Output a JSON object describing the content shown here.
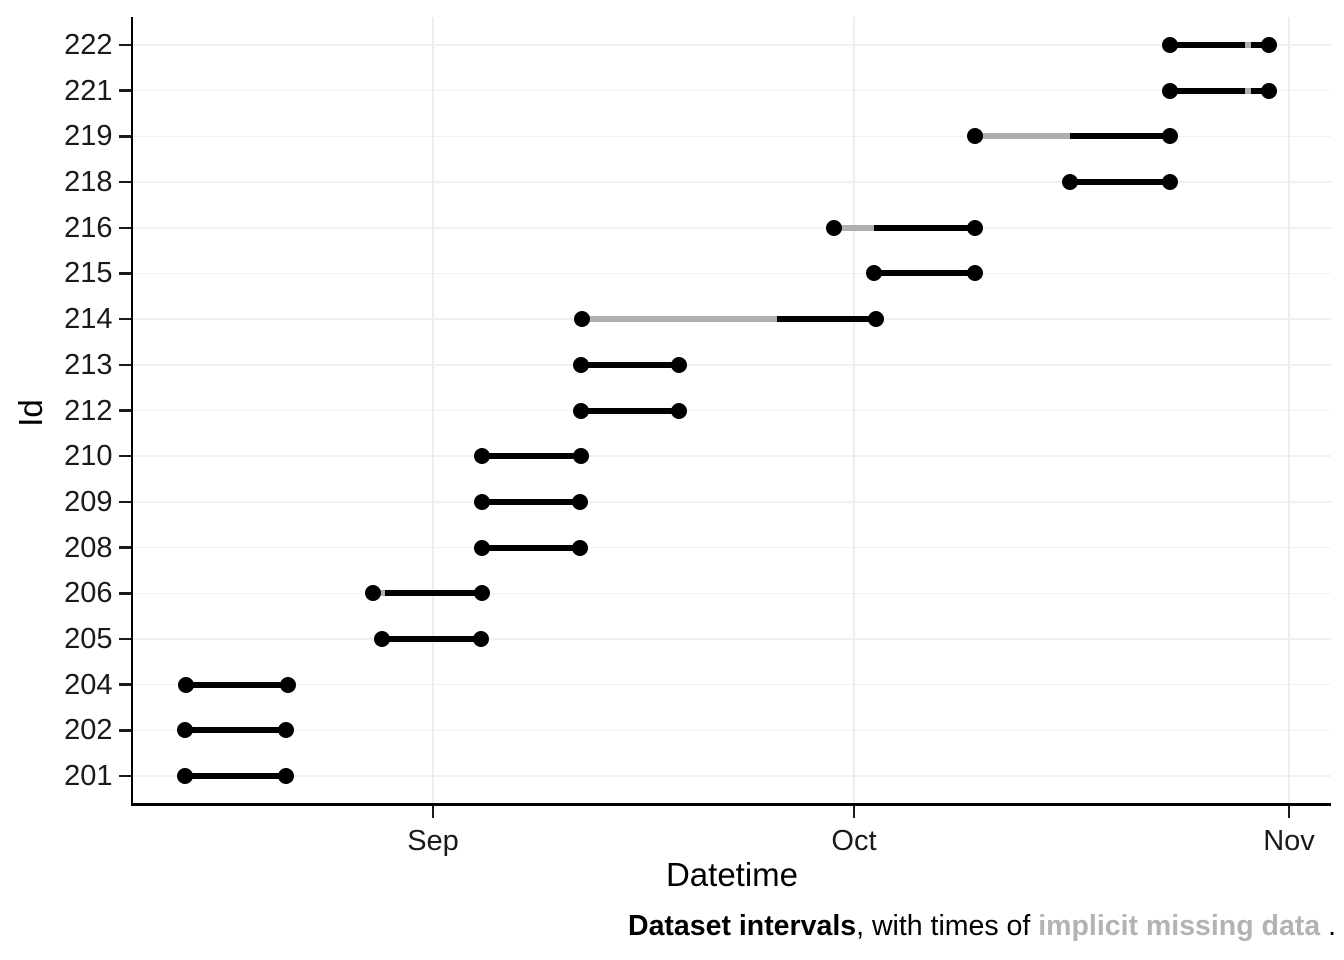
{
  "chart_data": {
    "type": "interval",
    "title": "",
    "xlabel": "Datetime",
    "ylabel": "Id",
    "grid": true,
    "legend_position": "none",
    "x_axis_note": "day values are day offsets where Aug 1 = 1 (Sep 1 = 32, Oct 1 = 62, Nov 1 = 93)",
    "x_ticks": [
      {
        "label": "Sep",
        "day": 32
      },
      {
        "label": "Oct",
        "day": 62
      },
      {
        "label": "Nov",
        "day": 93
      }
    ],
    "x_domain_days": [
      10.6,
      96.0
    ],
    "y_categories": [
      "222",
      "221",
      "219",
      "218",
      "216",
      "215",
      "214",
      "213",
      "212",
      "210",
      "209",
      "208",
      "206",
      "205",
      "204",
      "202",
      "201"
    ],
    "intervals": [
      {
        "id": "222",
        "start": "Oct 23",
        "end": "Oct 30",
        "start_day": 84.5,
        "end_day": 91.6,
        "missing_days": [
          [
            89.85,
            90.3
          ]
        ],
        "missing": [
          "~Oct 29 (brief)"
        ]
      },
      {
        "id": "221",
        "start": "Oct 23",
        "end": "Oct 30",
        "start_day": 84.5,
        "end_day": 91.6,
        "missing_days": [
          [
            89.85,
            90.3
          ]
        ],
        "missing": [
          "~Oct 29 (brief)"
        ]
      },
      {
        "id": "219",
        "start": "Oct 9",
        "end": "Oct 23",
        "start_day": 70.6,
        "end_day": 84.5,
        "missing_days": [
          [
            70.6,
            77.4
          ]
        ],
        "missing": [
          "Oct 9 - Oct 16"
        ]
      },
      {
        "id": "218",
        "start": "Oct 16",
        "end": "Oct 23",
        "start_day": 77.4,
        "end_day": 84.5,
        "missing_days": [],
        "missing": []
      },
      {
        "id": "216",
        "start": "Sep 29",
        "end": "Oct 9",
        "start_day": 60.6,
        "end_day": 70.6,
        "missing_days": [
          [
            60.6,
            63.4
          ]
        ],
        "missing": [
          "Sep 29 - Oct 2"
        ]
      },
      {
        "id": "215",
        "start": "Oct 2",
        "end": "Oct 9",
        "start_day": 63.4,
        "end_day": 70.6,
        "missing_days": [],
        "missing": []
      },
      {
        "id": "214",
        "start": "Sep 11",
        "end": "Oct 2",
        "start_day": 42.6,
        "end_day": 63.6,
        "missing_days": [
          [
            42.6,
            56.5
          ]
        ],
        "missing": [
          "Sep 11 - Sep 25"
        ]
      },
      {
        "id": "213",
        "start": "Sep 11",
        "end": "Sep 18",
        "start_day": 42.55,
        "end_day": 49.5,
        "missing_days": [],
        "missing": []
      },
      {
        "id": "212",
        "start": "Sep 11",
        "end": "Sep 18",
        "start_day": 42.55,
        "end_day": 49.5,
        "missing_days": [],
        "missing": []
      },
      {
        "id": "210",
        "start": "Sep 4",
        "end": "Sep 11",
        "start_day": 35.5,
        "end_day": 42.55,
        "missing_days": [],
        "missing": []
      },
      {
        "id": "209",
        "start": "Sep 4",
        "end": "Sep 11",
        "start_day": 35.5,
        "end_day": 42.5,
        "missing_days": [],
        "missing": []
      },
      {
        "id": "208",
        "start": "Sep 4",
        "end": "Sep 11",
        "start_day": 35.5,
        "end_day": 42.5,
        "missing_days": [],
        "missing": []
      },
      {
        "id": "206",
        "start": "Aug 28",
        "end": "Sep 4",
        "start_day": 27.7,
        "end_day": 35.5,
        "missing_days": [
          [
            27.7,
            28.6
          ]
        ],
        "missing": [
          "~Aug 28 (brief)"
        ]
      },
      {
        "id": "205",
        "start": "Aug 28",
        "end": "Sep 4",
        "start_day": 28.4,
        "end_day": 35.4,
        "missing_days": [],
        "missing": []
      },
      {
        "id": "204",
        "start": "Aug 14",
        "end": "Aug 21",
        "start_day": 14.4,
        "end_day": 21.7,
        "missing_days": [],
        "missing": []
      },
      {
        "id": "202",
        "start": "Aug 14",
        "end": "Aug 21",
        "start_day": 14.3,
        "end_day": 21.5,
        "missing_days": [],
        "missing": []
      },
      {
        "id": "201",
        "start": "Aug 14",
        "end": "Aug 21",
        "start_day": 14.3,
        "end_day": 21.5,
        "missing_days": [],
        "missing": []
      }
    ],
    "colors": {
      "data_line": "#000000",
      "missing_line": "#afafaf",
      "axis": "#000000",
      "gridline": "#f1f1f1",
      "caption_gray": "#b3b3b3"
    }
  },
  "caption": {
    "part1_bold": "Dataset intervals",
    "part2": ", with times of ",
    "part3_gray_bold": "implicit missing data",
    "part4": " ."
  }
}
